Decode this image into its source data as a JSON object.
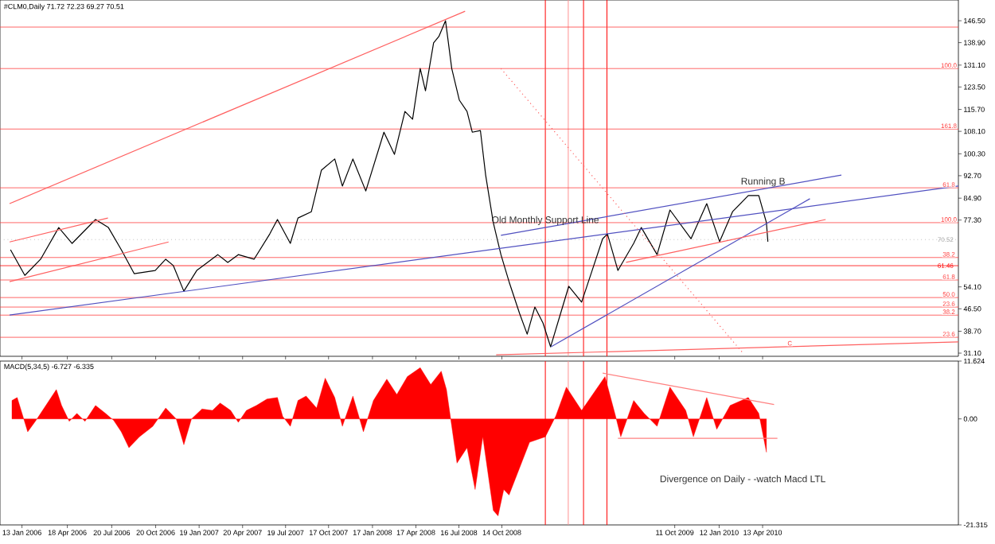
{
  "chart_data": [
    {
      "type": "line",
      "title": "#CLM0,Daily 71.72 72.23 69.27 70.51",
      "xlim": [
        "2005-11-28",
        "2011-05-28"
      ],
      "ylim": [
        30.0,
        153.7
      ],
      "tick_labels": "y",
      "xticks": [
        {
          "value": "2006-01-13",
          "label": null
        },
        {
          "value": "2006-04-18",
          "label": null
        },
        {
          "value": "2006-07-20",
          "label": null
        },
        {
          "value": "2006-10-20",
          "label": null
        },
        {
          "value": "2007-01-19",
          "label": null
        },
        {
          "value": "2007-04-20",
          "label": null
        },
        {
          "value": "2007-07-19",
          "label": null
        },
        {
          "value": "2007-10-17",
          "label": null
        },
        {
          "value": "2008-01-17",
          "label": null
        },
        {
          "value": "2008-04-17",
          "label": null
        },
        {
          "value": "2008-07-16",
          "label": null
        },
        {
          "value": "2008-10-14",
          "label": null
        },
        {
          "value": "2009-10-11",
          "label": null
        },
        {
          "value": "2010-01-12",
          "label": null
        },
        {
          "value": "2010-04-13",
          "label": null
        }
      ],
      "yticks": [
        {
          "value": 146.5,
          "label": "146.50"
        },
        {
          "value": 138.9,
          "label": "138.90"
        },
        {
          "value": 131.1,
          "label": "131.10"
        },
        {
          "value": 123.5,
          "label": "123.50"
        },
        {
          "value": 115.7,
          "label": "115.70"
        },
        {
          "value": 108.1,
          "label": "108.10"
        },
        {
          "value": 100.3,
          "label": "100.30"
        },
        {
          "value": 92.7,
          "label": "92.70"
        },
        {
          "value": 84.9,
          "label": "84.90"
        },
        {
          "value": 77.3,
          "label": "77.30"
        },
        {
          "value": 54.1,
          "label": "54.10"
        },
        {
          "value": 46.5,
          "label": "46.50"
        },
        {
          "value": 38.7,
          "label": "38.70"
        },
        {
          "value": 31.1,
          "label": "31.10"
        }
      ],
      "series": [
        {
          "color": "#000000",
          "x": [
            "2005-12-20",
            "2006-01-19",
            "2006-02-21",
            "2006-03-31",
            "2006-04-28",
            "2006-06-16",
            "2006-07-13",
            "2006-08-09",
            "2006-09-05",
            "2006-10-19",
            "2006-11-10",
            "2006-11-26",
            "2006-12-18",
            "2007-01-14",
            "2007-02-27",
            "2007-03-20",
            "2007-04-11",
            "2007-05-14",
            "2007-06-16",
            "2007-07-02",
            "2007-07-29",
            "2007-08-14",
            "2007-09-11",
            "2007-10-02",
            "2007-10-30",
            "2007-11-15",
            "2007-12-07",
            "2008-01-03",
            "2008-02-10",
            "2008-03-03",
            "2008-03-25",
            "2008-04-10",
            "2008-04-26",
            "2008-05-07",
            "2008-05-24",
            "2008-06-04",
            "2008-06-18",
            "2008-07-01",
            "2008-07-17",
            "2008-08-02",
            "2008-08-13",
            "2008-08-30",
            "2008-09-10",
            "2008-09-26",
            "2008-10-12",
            "2008-10-29",
            "2008-11-20",
            "2008-12-06",
            "2008-12-22",
            "2009-01-08",
            "2009-01-24",
            "2009-02-14",
            "2009-03-03",
            "2009-03-30",
            "2009-04-21",
            "2009-05-13",
            "2009-05-23",
            "2009-06-14",
            "2009-07-17",
            "2009-08-02",
            "2009-09-04",
            "2009-10-01",
            "2009-11-14",
            "2009-12-17",
            "2010-01-13",
            "2010-02-09",
            "2010-03-14",
            "2010-04-05",
            "2010-04-21",
            "2010-04-24"
          ],
          "values": [
            67.0,
            58.1,
            63.7,
            74.7,
            69.2,
            77.5,
            74.7,
            67.0,
            58.7,
            59.8,
            63.7,
            61.5,
            52.6,
            59.8,
            65.3,
            62.6,
            65.3,
            63.7,
            72.5,
            77.5,
            69.2,
            78.0,
            80.2,
            94.6,
            98.5,
            89.1,
            98.5,
            87.4,
            107.8,
            100.1,
            115.0,
            112.3,
            129.9,
            122.2,
            138.8,
            141.0,
            146.5,
            129.9,
            118.9,
            115.0,
            107.8,
            108.4,
            92.9,
            76.4,
            65.3,
            55.9,
            44.9,
            37.7,
            47.1,
            41.6,
            33.3,
            44.9,
            54.3,
            48.8,
            59.8,
            70.8,
            72.5,
            59.8,
            69.2,
            74.7,
            65.3,
            80.8,
            70.8,
            83.0,
            69.8,
            80.2,
            85.8,
            85.8,
            76.4,
            69.8
          ]
        },
        {
          "type": "line",
          "color": "#ff6060",
          "x": [
            "2005-12-18",
            "2008-07-29"
          ],
          "values": [
            83.0,
            149.8
          ]
        },
        {
          "type": "line",
          "color": "#5050c0",
          "x": [
            "2005-12-18",
            "2011-05-28"
          ],
          "values": [
            44.3,
            89.1
          ]
        },
        {
          "type": "line",
          "color": "#5050c0",
          "x": [
            "2008-10-12",
            "2010-09-25"
          ],
          "values": [
            72.0,
            92.9
          ]
        },
        {
          "type": "line",
          "color": "#5050c0",
          "x": [
            "2009-01-25",
            "2010-07-21"
          ],
          "values": [
            33.3,
            84.7
          ]
        },
        {
          "type": "line",
          "color": "#ff6060",
          "x": [
            "2009-07-01",
            "2010-08-23"
          ],
          "values": [
            62.6,
            77.5
          ]
        },
        {
          "type": "line",
          "color": "#ff6060",
          "x": [
            "2005-12-18",
            "2006-07-12"
          ],
          "values": [
            69.7,
            78.0
          ]
        },
        {
          "type": "line",
          "color": "#ff6060",
          "x": [
            "2005-12-18",
            "2006-11-16"
          ],
          "values": [
            55.9,
            69.7
          ]
        },
        {
          "type": "line",
          "color": "#ff6060",
          "line_style": "dotted",
          "x": [
            "2008-10-12",
            "2010-03-03"
          ],
          "values": [
            129.9,
            31.1
          ]
        },
        {
          "type": "line",
          "color": "#ff6060",
          "x": [
            "2008-10-02",
            "2011-05-28"
          ],
          "values": [
            30.5,
            35.0
          ]
        }
      ],
      "ref_lines": [
        {
          "axis": "x",
          "value": "2009-01-13",
          "color": "#ff0000"
        },
        {
          "axis": "x",
          "value": "2009-03-02",
          "color": "#ff9090"
        },
        {
          "axis": "x",
          "value": "2009-04-03",
          "color": "#ff0000"
        },
        {
          "axis": "x",
          "value": "2009-05-22",
          "color": "#ff0000"
        },
        {
          "axis": "y",
          "value": 144.3,
          "color": "#ff4040"
        },
        {
          "axis": "y",
          "value": 129.9,
          "color": "#ff4040"
        },
        {
          "axis": "y",
          "value": 108.9,
          "color": "#ff4040"
        },
        {
          "axis": "y",
          "value": 88.5,
          "color": "#ff4040"
        },
        {
          "axis": "y",
          "value": 76.4,
          "color": "#ff4040"
        },
        {
          "axis": "y",
          "value": 70.52,
          "label": "70.52",
          "color": "#a0a0a0",
          "line_style": "dotted"
        },
        {
          "axis": "y",
          "value": 64.3,
          "color": "#ff4040"
        },
        {
          "axis": "y",
          "value": 61.46,
          "label": "61.46",
          "color": "#ff0000"
        },
        {
          "axis": "y",
          "value": 56.5,
          "color": "#ff4040"
        },
        {
          "axis": "y",
          "value": 50.4,
          "color": "#ff4040"
        },
        {
          "axis": "y",
          "value": 47.1,
          "color": "#ff4040"
        },
        {
          "axis": "y",
          "value": 44.3,
          "color": "#ff4040"
        },
        {
          "axis": "y",
          "value": 36.6,
          "color": "#ff4040"
        }
      ],
      "annotations": [
        {
          "text": "Running B",
          "x": "2010-04-14",
          "y": 88.1
        },
        {
          "text": "Old Monthly Support Line",
          "x": "2009-01-13",
          "y": 74.7
        },
        {
          "text": "C",
          "x": "2010-06-09",
          "y": 33.4
        },
        {
          "text": "100.0",
          "x": "2011-05-08",
          "y": 129.9
        },
        {
          "text": "161.8",
          "x": "2011-05-08",
          "y": 108.9
        },
        {
          "text": "61.8",
          "x": "2011-05-08",
          "y": 88.5
        },
        {
          "text": "100.0",
          "x": "2011-05-08",
          "y": 76.4
        },
        {
          "text": "38.2",
          "x": "2011-05-08",
          "y": 64.3
        },
        {
          "text": "61.8",
          "x": "2011-05-08",
          "y": 56.5
        },
        {
          "text": "50.0",
          "x": "2011-05-08",
          "y": 50.4
        },
        {
          "text": "23.6",
          "x": "2011-05-08",
          "y": 47.1
        },
        {
          "text": "38.2",
          "x": "2011-05-08",
          "y": 44.3
        },
        {
          "text": "23.6",
          "x": "2011-05-08",
          "y": 36.6
        }
      ]
    },
    {
      "type": "area",
      "title": "MACD(5,34,5) -6.727 -6.335",
      "xlim": [
        "2005-11-28",
        "2011-05-28"
      ],
      "ylim": [
        -21.315,
        11.624
      ],
      "xticks": [
        {
          "value": "2006-01-13",
          "label": "13 Jan 2006"
        },
        {
          "value": "2006-04-18",
          "label": "18 Apr 2006"
        },
        {
          "value": "2006-07-20",
          "label": "20 Jul 2006"
        },
        {
          "value": "2006-10-20",
          "label": "20 Oct 2006"
        },
        {
          "value": "2007-01-19",
          "label": "19 Jan 2007"
        },
        {
          "value": "2007-04-20",
          "label": "20 Apr 2007"
        },
        {
          "value": "2007-07-19",
          "label": "19 Jul 2007"
        },
        {
          "value": "2007-10-17",
          "label": "17 Oct 2007"
        },
        {
          "value": "2008-01-17",
          "label": "17 Jan 2008"
        },
        {
          "value": "2008-04-17",
          "label": "17 Apr 2008"
        },
        {
          "value": "2008-07-16",
          "label": "16 Jul 2008"
        },
        {
          "value": "2008-10-14",
          "label": "14 Oct 2008"
        },
        {
          "value": "2009-10-11",
          "label": "11 Oct 2009"
        },
        {
          "value": "2010-01-12",
          "label": "12 Jan 2010"
        },
        {
          "value": "2010-04-13",
          "label": "13 Apr 2010"
        }
      ],
      "yticks": [
        {
          "value": 11.624,
          "label": "11.624"
        },
        {
          "value": 0,
          "label": "0.00"
        },
        {
          "value": -21.315,
          "label": "-21.315"
        }
      ],
      "series": [
        {
          "color": "#ff0000",
          "x": [
            "2005-12-23",
            "2006-01-03",
            "2006-01-25",
            "2006-02-10",
            "2006-03-04",
            "2006-03-26",
            "2006-04-06",
            "2006-04-22",
            "2006-05-08",
            "2006-05-25",
            "2006-06-16",
            "2006-07-07",
            "2006-07-24",
            "2006-08-09",
            "2006-08-25",
            "2006-09-16",
            "2006-10-14",
            "2006-11-10",
            "2006-12-02",
            "2006-12-18",
            "2007-01-03",
            "2007-01-25",
            "2007-02-16",
            "2007-03-04",
            "2007-03-26",
            "2007-04-11",
            "2007-04-28",
            "2007-05-19",
            "2007-06-10",
            "2007-07-02",
            "2007-07-13",
            "2007-07-29",
            "2007-08-14",
            "2007-08-31",
            "2007-09-22",
            "2007-10-10",
            "2007-10-30",
            "2007-11-15",
            "2007-12-07",
            "2007-12-29",
            "2008-01-19",
            "2008-02-16",
            "2008-03-08",
            "2008-03-30",
            "2008-04-26",
            "2008-05-18",
            "2008-06-09",
            "2008-06-20",
            "2008-07-01",
            "2008-07-12",
            "2008-08-02",
            "2008-08-19",
            "2008-09-04",
            "2008-09-26",
            "2008-10-06",
            "2008-10-18",
            "2008-10-29",
            "2008-12-11",
            "2009-01-13",
            "2009-02-04",
            "2009-02-26",
            "2009-03-30",
            "2009-05-18",
            "2009-06-09",
            "2009-06-20",
            "2009-07-17",
            "2009-08-08",
            "2009-09-04",
            "2009-10-01",
            "2009-11-03",
            "2009-11-19",
            "2009-12-17",
            "2010-01-07",
            "2010-02-04",
            "2010-03-14",
            "2010-04-05",
            "2010-04-21"
          ],
          "values": [
            3.7,
            4.3,
            -2.6,
            -0.5,
            2.7,
            5.9,
            2.7,
            -0.5,
            1.1,
            -0.5,
            2.7,
            1.1,
            -0.3,
            -2.6,
            -5.8,
            -3.6,
            -1.5,
            2.2,
            0,
            -5.2,
            0,
            2.0,
            1.7,
            3.2,
            1.7,
            -0.7,
            1.7,
            2.7,
            4.0,
            4.3,
            0.5,
            -1.5,
            3.7,
            4.6,
            2.2,
            8.2,
            4.3,
            -1.5,
            4.6,
            -2.6,
            3.7,
            8.0,
            4.9,
            8.5,
            10.3,
            6.9,
            9.6,
            5.9,
            -1.5,
            -8.9,
            -5.8,
            -14.2,
            -3.6,
            -18.4,
            -19.5,
            -14.2,
            -15.3,
            -4.7,
            -3.6,
            0.6,
            6.4,
            1.7,
            8.5,
            0.6,
            -3.6,
            3.7,
            1.1,
            -1.5,
            6.4,
            1.7,
            -3.6,
            4.3,
            -2.1,
            2.7,
            4.3,
            1.1,
            -6.7
          ]
        },
        {
          "type": "line",
          "color": "#ff8080",
          "x": [
            "2009-05-13",
            "2010-05-07"
          ],
          "values": [
            9.2,
            2.9
          ]
        },
        {
          "type": "line",
          "color": "#ff8080",
          "x": [
            "2009-06-14",
            "2010-05-14"
          ],
          "values": [
            -3.9,
            -3.9
          ]
        }
      ],
      "ref_lines": [
        {
          "axis": "x",
          "value": "2009-01-13",
          "color": "#ff0000"
        },
        {
          "axis": "x",
          "value": "2009-03-02",
          "color": "#ff9090"
        },
        {
          "axis": "x",
          "value": "2009-04-03",
          "color": "#ff0000"
        },
        {
          "axis": "x",
          "value": "2009-05-22",
          "color": "#ff0000"
        }
      ],
      "annotations": [
        "Divergence on Daily - -watch Macd LTL"
      ]
    }
  ]
}
